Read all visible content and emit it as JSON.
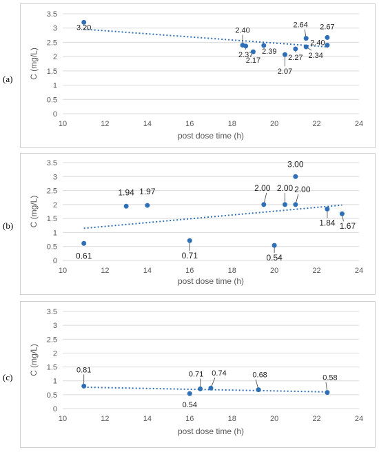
{
  "colors": {
    "point": "#2e6fb6",
    "trend": "#2e6fb6",
    "grid": "#d9d9d9",
    "text": "#595959"
  },
  "panels": [
    {
      "label": "(a)",
      "xlabel": "post dose time (h)",
      "ylabel": "C (mg/L)"
    },
    {
      "label": "(b)",
      "xlabel": "post dose time (h)",
      "ylabel": "C (mg/L)"
    },
    {
      "label": "(c)",
      "xlabel": "post dose time (h)",
      "ylabel": "C (mg/L)"
    }
  ],
  "chart_data": [
    {
      "type": "scatter",
      "xlabel": "post dose time (h)",
      "ylabel": "C (mg/L)",
      "xlim": [
        10,
        24
      ],
      "ylim": [
        0,
        3.5
      ],
      "xticks": [
        10,
        12,
        14,
        16,
        18,
        20,
        22,
        24
      ],
      "yticks": [
        0,
        0.5,
        1,
        1.5,
        2,
        2.5,
        3,
        3.5
      ],
      "grid": "horizontal",
      "trendline": {
        "type": "linear",
        "from": [
          11,
          2.96
        ],
        "to": [
          22.5,
          2.34
        ]
      },
      "points": [
        {
          "x": 11.0,
          "y": 3.2,
          "label": "3.20"
        },
        {
          "x": 18.5,
          "y": 2.4,
          "label": "2.40"
        },
        {
          "x": 18.65,
          "y": 2.37,
          "label": "2.37"
        },
        {
          "x": 19.0,
          "y": 2.17,
          "label": "2.17"
        },
        {
          "x": 19.5,
          "y": 2.39,
          "label": "2.39"
        },
        {
          "x": 20.5,
          "y": 2.07,
          "label": "2.07"
        },
        {
          "x": 21.0,
          "y": 2.27,
          "label": "2.27"
        },
        {
          "x": 21.5,
          "y": 2.34,
          "label": "2.34"
        },
        {
          "x": 21.5,
          "y": 2.64,
          "label": "2.64"
        },
        {
          "x": 22.5,
          "y": 2.4,
          "label": "2.40"
        },
        {
          "x": 22.5,
          "y": 2.67,
          "label": "2.67"
        }
      ]
    },
    {
      "type": "scatter",
      "xlabel": "post dose time (h)",
      "ylabel": "C (mg/L)",
      "xlim": [
        10,
        24
      ],
      "ylim": [
        0,
        3.5
      ],
      "xticks": [
        10,
        12,
        14,
        16,
        18,
        20,
        22,
        24
      ],
      "yticks": [
        0,
        0.5,
        1,
        1.5,
        2,
        2.5,
        3,
        3.5
      ],
      "grid": "horizontal",
      "trendline": {
        "type": "linear",
        "from": [
          11,
          1.15
        ],
        "to": [
          23.2,
          1.98
        ]
      },
      "points": [
        {
          "x": 11.0,
          "y": 0.61,
          "label": "0.61"
        },
        {
          "x": 13.0,
          "y": 1.94,
          "label": "1.94"
        },
        {
          "x": 14.0,
          "y": 1.97,
          "label": "1.97"
        },
        {
          "x": 16.0,
          "y": 0.71,
          "label": "0.71"
        },
        {
          "x": 19.5,
          "y": 2.0,
          "label": "2.00"
        },
        {
          "x": 20.0,
          "y": 0.54,
          "label": "0.54"
        },
        {
          "x": 20.5,
          "y": 2.0,
          "label": "2.00"
        },
        {
          "x": 21.0,
          "y": 2.0,
          "label": "2.00"
        },
        {
          "x": 21.0,
          "y": 3.0,
          "label": "3.00"
        },
        {
          "x": 22.5,
          "y": 1.84,
          "label": "1.84"
        },
        {
          "x": 23.2,
          "y": 1.67,
          "label": "1.67"
        }
      ]
    },
    {
      "type": "scatter",
      "xlabel": "post dose time (h)",
      "ylabel": "C (mg/L)",
      "xlim": [
        10,
        24
      ],
      "ylim": [
        0,
        3.5
      ],
      "xticks": [
        10,
        12,
        14,
        16,
        18,
        20,
        22,
        24
      ],
      "yticks": [
        0,
        0.5,
        1,
        1.5,
        2,
        2.5,
        3,
        3.5
      ],
      "grid": "horizontal",
      "trendline": {
        "type": "linear",
        "from": [
          11,
          0.77
        ],
        "to": [
          22.5,
          0.6
        ]
      },
      "points": [
        {
          "x": 11.0,
          "y": 0.81,
          "label": "0.81"
        },
        {
          "x": 16.0,
          "y": 0.54,
          "label": "0.54"
        },
        {
          "x": 16.5,
          "y": 0.71,
          "label": "0.71"
        },
        {
          "x": 17.0,
          "y": 0.74,
          "label": "0.74"
        },
        {
          "x": 19.25,
          "y": 0.68,
          "label": "0.68"
        },
        {
          "x": 22.5,
          "y": 0.58,
          "label": "0.58"
        }
      ]
    }
  ]
}
